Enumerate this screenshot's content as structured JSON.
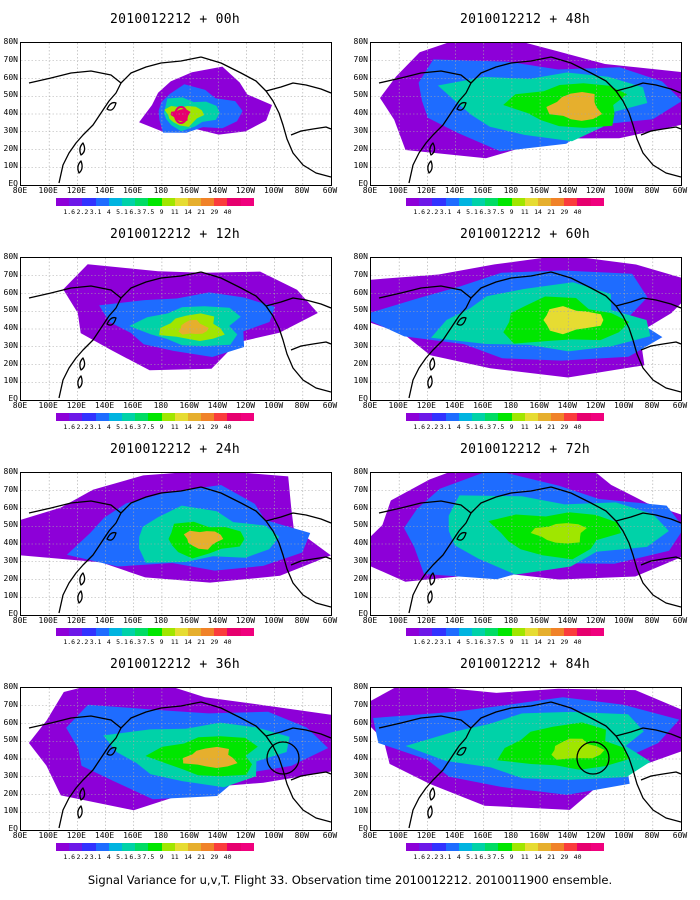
{
  "panels": [
    {
      "title": "2010012212 + 00h",
      "lead": "00h"
    },
    {
      "title": "2010012212 + 48h",
      "lead": "48h"
    },
    {
      "title": "2010012212 + 12h",
      "lead": "12h"
    },
    {
      "title": "2010012212 + 60h",
      "lead": "60h"
    },
    {
      "title": "2010012212 + 24h",
      "lead": "24h"
    },
    {
      "title": "2010012212 + 72h",
      "lead": "72h"
    },
    {
      "title": "2010012212 + 36h",
      "lead": "36h"
    },
    {
      "title": "2010012212 + 84h",
      "lead": "84h"
    }
  ],
  "lat_labels": [
    "80N",
    "70N",
    "60N",
    "50N",
    "40N",
    "30N",
    "20N",
    "10N",
    "EQ"
  ],
  "lon_labels": [
    "80E",
    "100E",
    "120E",
    "140E",
    "160E",
    "180",
    "160W",
    "140W",
    "120W",
    "100W",
    "80W",
    "60W"
  ],
  "colorbar": {
    "labels": [
      "1.6",
      "2.2",
      "3.1",
      "4",
      "5.1",
      "6.3",
      "7.5",
      "9",
      "11",
      "14",
      "21",
      "29",
      "40"
    ],
    "colors": [
      "#8d00d8",
      "#6d18e8",
      "#3232ff",
      "#1e6cff",
      "#00b4e0",
      "#00d2a8",
      "#00dc64",
      "#00e600",
      "#a0e600",
      "#e6dc32",
      "#e6af2d",
      "#f08228",
      "#fa3c3c",
      "#e6006e",
      "#f0007d"
    ]
  },
  "caption": "Signal Variance for u,v,T. Flight 33. Observation time 2010012212. 2010011900 ensemble."
}
